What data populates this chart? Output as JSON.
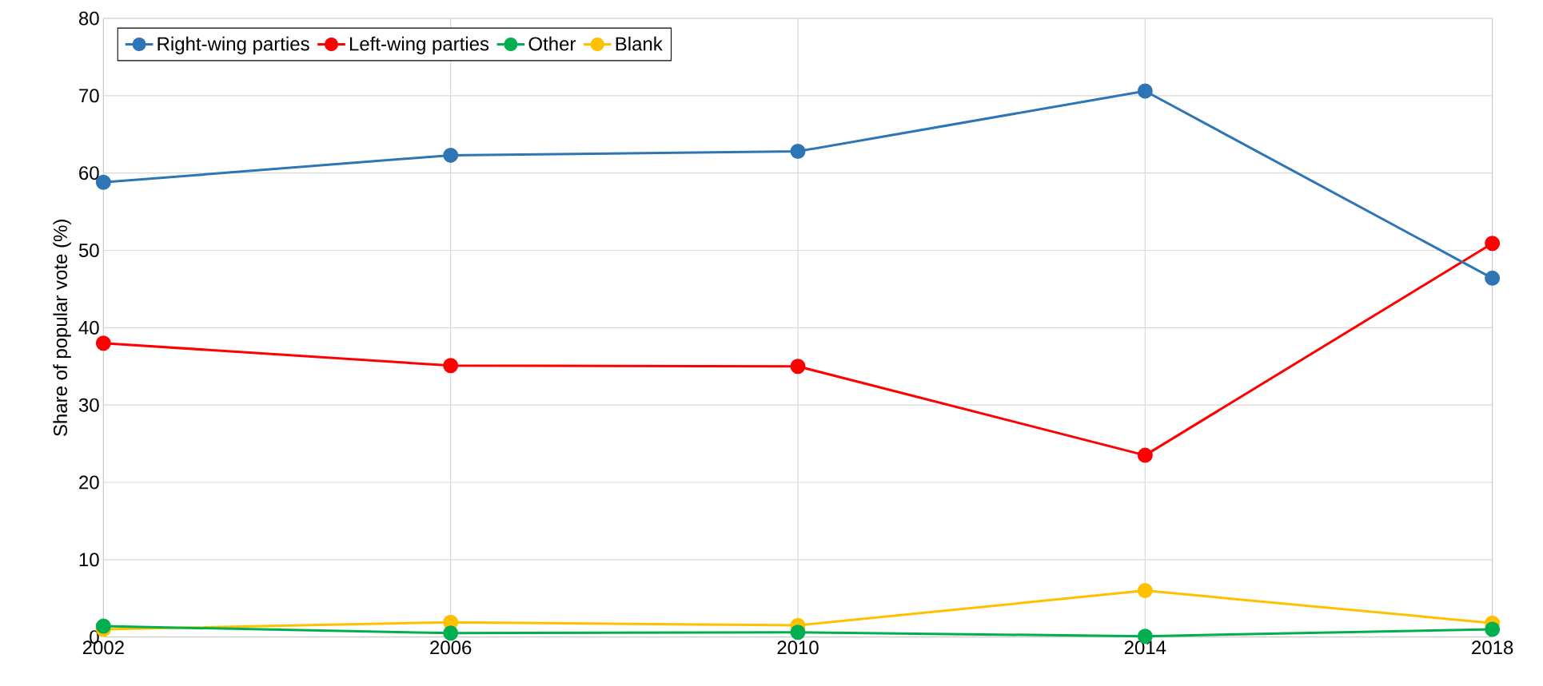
{
  "chart_data": {
    "type": "line",
    "ylabel": "Share of popular vote (%)",
    "x": [
      2002,
      2006,
      2010,
      2014,
      2018
    ],
    "series": [
      {
        "name": "Right-wing parties",
        "color": "#2e75b6",
        "values": [
          58.8,
          62.3,
          62.8,
          70.6,
          46.4
        ]
      },
      {
        "name": "Left-wing parties",
        "color": "#ff0000",
        "values": [
          38.0,
          35.1,
          35.0,
          23.5,
          50.9
        ]
      },
      {
        "name": "Other",
        "color": "#00b050",
        "values": [
          1.4,
          0.5,
          0.6,
          0.1,
          1.0
        ]
      },
      {
        "name": "Blank",
        "color": "#ffc000",
        "values": [
          1.0,
          1.9,
          1.5,
          6.0,
          1.8
        ]
      }
    ],
    "xlim": [
      2002,
      2018
    ],
    "xticks": [
      2002,
      2006,
      2010,
      2014,
      2018
    ],
    "ylim": [
      0,
      80
    ],
    "yticks": [
      0,
      10,
      20,
      30,
      40,
      50,
      60,
      70,
      80
    ],
    "grid": true,
    "legend": "top left",
    "marker": "circle",
    "line_style": "solid"
  }
}
